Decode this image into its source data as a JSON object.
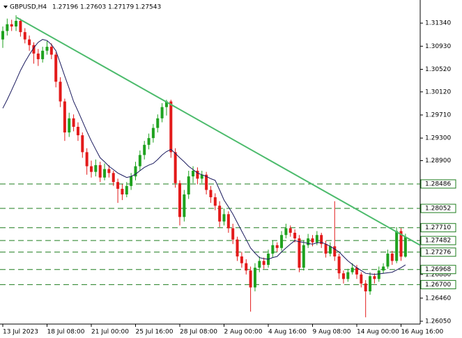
{
  "header": {
    "symbol": "GBPUSD,H4",
    "open": 1.27196,
    "high": 1.27603,
    "low": 1.27179,
    "close": 1.27543
  },
  "chart_data": {
    "type": "candlestick",
    "up_color": "#1fa21f",
    "down_color": "#e31a1a",
    "ma_color": "#1a1a5e",
    "level_color": "#1e7d1e",
    "ylim": [
      1.26,
      1.3175
    ],
    "yticks": [
      {
        "value": 1.3134,
        "label": "1.31340"
      },
      {
        "value": 1.3093,
        "label": "1.30930"
      },
      {
        "value": 1.3052,
        "label": "1.30520"
      },
      {
        "value": 1.3012,
        "label": "1.30120"
      },
      {
        "value": 1.2971,
        "label": "1.29710"
      },
      {
        "value": 1.293,
        "label": "1.29300"
      },
      {
        "value": 1.289,
        "label": "1.28900"
      },
      {
        "value": 1.2688,
        "label": "1.26880"
      },
      {
        "value": 1.2646,
        "label": "1.26460"
      },
      {
        "value": 1.2605,
        "label": "1.26050"
      }
    ],
    "levels": [
      {
        "value": 1.28486,
        "label": "1.28486"
      },
      {
        "value": 1.28052,
        "label": "1.28052"
      },
      {
        "value": 1.2771,
        "label": "1.27710"
      },
      {
        "value": 1.27482,
        "label": "1.27482"
      },
      {
        "value": 1.27276,
        "label": "1.27276"
      },
      {
        "value": 1.26968,
        "label": "1.26968"
      },
      {
        "value": 1.267,
        "label": "1.26700"
      }
    ],
    "trendline": {
      "color": "#4cbb6c",
      "x": [
        3.15,
        94.3
      ],
      "values": [
        1.3144,
        1.274
      ]
    },
    "categories": [
      "13 Jul 2023",
      null,
      null,
      null,
      null,
      null,
      null,
      null,
      null,
      null,
      "18 Jul 08:00",
      null,
      null,
      null,
      null,
      null,
      null,
      null,
      null,
      null,
      "21 Jul 00:00",
      null,
      null,
      null,
      null,
      null,
      null,
      null,
      null,
      null,
      "25 Jul 16:00",
      null,
      null,
      null,
      null,
      null,
      null,
      null,
      null,
      null,
      "28 Jul 08:00",
      null,
      null,
      null,
      null,
      null,
      null,
      null,
      null,
      null,
      "2 Aug 00:00",
      null,
      null,
      null,
      null,
      null,
      null,
      null,
      null,
      null,
      "4 Aug 16:00",
      null,
      null,
      null,
      null,
      null,
      null,
      null,
      null,
      null,
      "9 Aug 08:00",
      null,
      null,
      null,
      null,
      null,
      null,
      null,
      null,
      null,
      "14 Aug 00:00",
      null,
      null,
      null,
      null,
      null,
      null,
      null,
      null,
      null,
      "16 Aug 16:00",
      null
    ],
    "ohlc": [
      [
        1.3105,
        1.3128,
        1.309,
        1.312
      ],
      [
        1.312,
        1.3142,
        1.3112,
        1.3132
      ],
      [
        1.3132,
        1.314,
        1.312,
        1.3128
      ],
      [
        1.3128,
        1.3148,
        1.312,
        1.3138
      ],
      [
        1.3138,
        1.3142,
        1.311,
        1.3118
      ],
      [
        1.3118,
        1.3125,
        1.3098,
        1.3105
      ],
      [
        1.3105,
        1.3112,
        1.3085,
        1.3095
      ],
      [
        1.3095,
        1.31,
        1.3062,
        1.308
      ],
      [
        1.308,
        1.3088,
        1.3058,
        1.307
      ],
      [
        1.307,
        1.3092,
        1.3064,
        1.3085
      ],
      [
        1.3085,
        1.3102,
        1.3078,
        1.3092
      ],
      [
        1.3092,
        1.3098,
        1.307,
        1.3078
      ],
      [
        1.3078,
        1.3082,
        1.302,
        1.303
      ],
      [
        1.303,
        1.3038,
        1.2985,
        1.2995
      ],
      [
        1.2995,
        1.3,
        1.2925,
        1.294
      ],
      [
        1.294,
        1.2975,
        1.2932,
        1.2965
      ],
      [
        1.2965,
        1.2972,
        1.2942,
        1.295
      ],
      [
        1.295,
        1.2958,
        1.2925,
        1.2935
      ],
      [
        1.2935,
        1.294,
        1.2895,
        1.2905
      ],
      [
        1.2905,
        1.2912,
        1.2865,
        1.288
      ],
      [
        1.288,
        1.289,
        1.286,
        1.287
      ],
      [
        1.287,
        1.2892,
        1.2862,
        1.2882
      ],
      [
        1.2882,
        1.2888,
        1.2852,
        1.286
      ],
      [
        1.286,
        1.2885,
        1.2855,
        1.2875
      ],
      [
        1.2875,
        1.2882,
        1.286,
        1.2868
      ],
      [
        1.2868,
        1.2872,
        1.2845,
        1.2852
      ],
      [
        1.2852,
        1.2858,
        1.2815,
        1.284
      ],
      [
        1.284,
        1.2848,
        1.282,
        1.283
      ],
      [
        1.283,
        1.2852,
        1.2825,
        1.2845
      ],
      [
        1.2845,
        1.2868,
        1.2838,
        1.2862
      ],
      [
        1.2862,
        1.2888,
        1.2855,
        1.288
      ],
      [
        1.288,
        1.2908,
        1.2872,
        1.29
      ],
      [
        1.29,
        1.2925,
        1.2892,
        1.2918
      ],
      [
        1.2918,
        1.2938,
        1.291,
        1.293
      ],
      [
        1.293,
        1.2955,
        1.2922,
        1.2948
      ],
      [
        1.2948,
        1.2972,
        1.294,
        1.2965
      ],
      [
        1.2965,
        1.2992,
        1.2958,
        1.2985
      ],
      [
        1.2985,
        1.2998,
        1.297,
        1.2995
      ],
      [
        1.2995,
        1.2998,
        1.2895,
        1.2905
      ],
      [
        1.2905,
        1.2912,
        1.2842,
        1.285
      ],
      [
        1.285,
        1.2855,
        1.2775,
        1.279
      ],
      [
        1.279,
        1.2838,
        1.2782,
        1.283
      ],
      [
        1.283,
        1.2872,
        1.2822,
        1.2862
      ],
      [
        1.2862,
        1.288,
        1.285,
        1.2872
      ],
      [
        1.2872,
        1.2878,
        1.2848,
        1.2858
      ],
      [
        1.2858,
        1.2872,
        1.285,
        1.2865
      ],
      [
        1.2865,
        1.287,
        1.283,
        1.2838
      ],
      [
        1.2838,
        1.2845,
        1.2815,
        1.2825
      ],
      [
        1.2825,
        1.2832,
        1.2802,
        1.281
      ],
      [
        1.281,
        1.2818,
        1.2772,
        1.2782
      ],
      [
        1.2782,
        1.2805,
        1.2775,
        1.2795
      ],
      [
        1.2795,
        1.28,
        1.2762,
        1.277
      ],
      [
        1.277,
        1.2778,
        1.2742,
        1.275
      ],
      [
        1.275,
        1.2755,
        1.2712,
        1.272
      ],
      [
        1.272,
        1.2728,
        1.27,
        1.2708
      ],
      [
        1.2708,
        1.2715,
        1.2688,
        1.2695
      ],
      [
        1.2695,
        1.2702,
        1.2622,
        1.2665
      ],
      [
        1.2665,
        1.2708,
        1.2658,
        1.27
      ],
      [
        1.27,
        1.272,
        1.2692,
        1.2712
      ],
      [
        1.2712,
        1.2718,
        1.2698,
        1.2705
      ],
      [
        1.2705,
        1.2732,
        1.27,
        1.2725
      ],
      [
        1.2725,
        1.2748,
        1.2718,
        1.274
      ],
      [
        1.274,
        1.2745,
        1.2728,
        1.2735
      ],
      [
        1.2735,
        1.2765,
        1.273,
        1.2758
      ],
      [
        1.2758,
        1.2778,
        1.2752,
        1.277
      ],
      [
        1.277,
        1.2775,
        1.2755,
        1.2762
      ],
      [
        1.2762,
        1.2768,
        1.2745,
        1.2752
      ],
      [
        1.2752,
        1.2758,
        1.2692,
        1.27
      ],
      [
        1.27,
        1.2748,
        1.2695,
        1.274
      ],
      [
        1.274,
        1.276,
        1.2735,
        1.2752
      ],
      [
        1.2752,
        1.2758,
        1.2738,
        1.2745
      ],
      [
        1.2745,
        1.2765,
        1.274,
        1.2758
      ],
      [
        1.2758,
        1.2762,
        1.2735,
        1.2742
      ],
      [
        1.2742,
        1.2748,
        1.2718,
        1.2725
      ],
      [
        1.2725,
        1.2745,
        1.272,
        1.2738
      ],
      [
        1.2738,
        1.2818,
        1.2712,
        1.272
      ],
      [
        1.272,
        1.2725,
        1.268,
        1.269
      ],
      [
        1.269,
        1.2695,
        1.2672,
        1.268
      ],
      [
        1.268,
        1.2698,
        1.2675,
        1.2692
      ],
      [
        1.2692,
        1.2708,
        1.2688,
        1.27
      ],
      [
        1.27,
        1.2705,
        1.268,
        1.2688
      ],
      [
        1.2688,
        1.2692,
        1.2665,
        1.2672
      ],
      [
        1.2672,
        1.2678,
        1.2612,
        1.2658
      ],
      [
        1.2658,
        1.2692,
        1.2652,
        1.2685
      ],
      [
        1.2685,
        1.269,
        1.2672,
        1.268
      ],
      [
        1.268,
        1.2702,
        1.2675,
        1.2695
      ],
      [
        1.2695,
        1.2708,
        1.269,
        1.2702
      ],
      [
        1.2702,
        1.2732,
        1.2698,
        1.2725
      ],
      [
        1.2725,
        1.273,
        1.2705,
        1.2712
      ],
      [
        1.2712,
        1.2772,
        1.2708,
        1.2765
      ],
      [
        1.2765,
        1.277,
        1.2712,
        1.27196
      ],
      [
        1.27196,
        1.27603,
        1.27179,
        1.27543
      ]
    ],
    "ma": [
      1.2983,
      1.2998,
      1.3015,
      1.3032,
      1.305,
      1.3065,
      1.3078,
      1.309,
      1.31,
      1.3105,
      1.3103,
      1.3096,
      1.3085,
      1.3063,
      1.304,
      1.3018,
      1.2995,
      1.2978,
      1.296,
      1.2942,
      1.2925,
      1.291,
      1.2895,
      1.2888,
      1.288,
      1.2874,
      1.2868,
      1.2864,
      1.286,
      1.2862,
      1.2866,
      1.2872,
      1.2878,
      1.2882,
      1.2885,
      1.2892,
      1.29,
      1.2906,
      1.291,
      1.2903,
      1.2895,
      1.2888,
      1.288,
      1.2874,
      1.2868,
      1.2865,
      1.2862,
      1.2858,
      1.2855,
      1.2838,
      1.282,
      1.2808,
      1.2795,
      1.278,
      1.2765,
      1.275,
      1.2735,
      1.2726,
      1.2718,
      1.2716,
      1.2715,
      1.2718,
      1.272,
      1.2728,
      1.2735,
      1.2742,
      1.2748,
      1.2746,
      1.2745,
      1.2743,
      1.2742,
      1.2744,
      1.2745,
      1.2742,
      1.2738,
      1.2733,
      1.2728,
      1.272,
      1.2712,
      1.2706,
      1.27,
      1.2695,
      1.269,
      1.2689,
      1.2688,
      1.2689,
      1.269,
      1.2691,
      1.2692,
      1.2696,
      1.27,
      1.2705
    ]
  }
}
